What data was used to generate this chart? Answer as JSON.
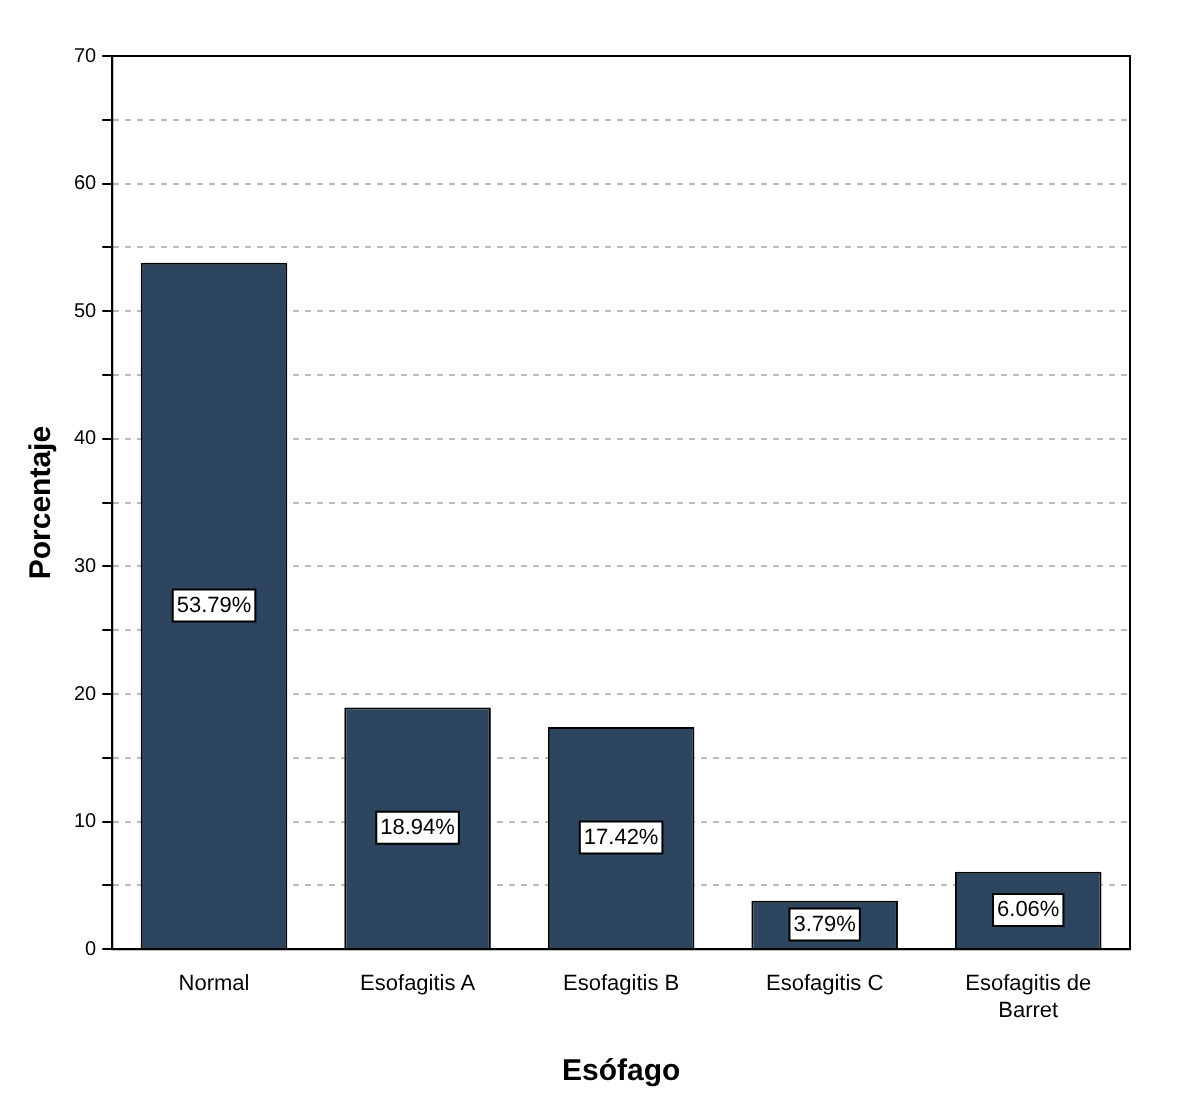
{
  "chart_data": {
    "type": "bar",
    "xlabel": "Esófago",
    "ylabel": "Porcentaje",
    "categories": [
      "Normal",
      "Esofagitis A",
      "Esofagitis B",
      "Esofagitis C",
      "Esofagitis de Barret"
    ],
    "values": [
      53.79,
      18.94,
      17.42,
      3.79,
      6.06
    ],
    "value_labels": [
      "53.79%",
      "18.94%",
      "17.42%",
      "3.79%",
      "6.06%"
    ],
    "color": "#2e4560",
    "ylim": [
      0,
      70
    ],
    "yticks": [
      0,
      {
        "value": 5,
        "label": null
      },
      10,
      {
        "value": 15,
        "label": null
      },
      20,
      {
        "value": 25,
        "label": null
      },
      30,
      {
        "value": 35,
        "label": null
      },
      40,
      {
        "value": 45,
        "label": null
      },
      50,
      {
        "value": 55,
        "label": null
      },
      60,
      {
        "value": 65,
        "label": null
      },
      70
    ],
    "grid": "y"
  }
}
